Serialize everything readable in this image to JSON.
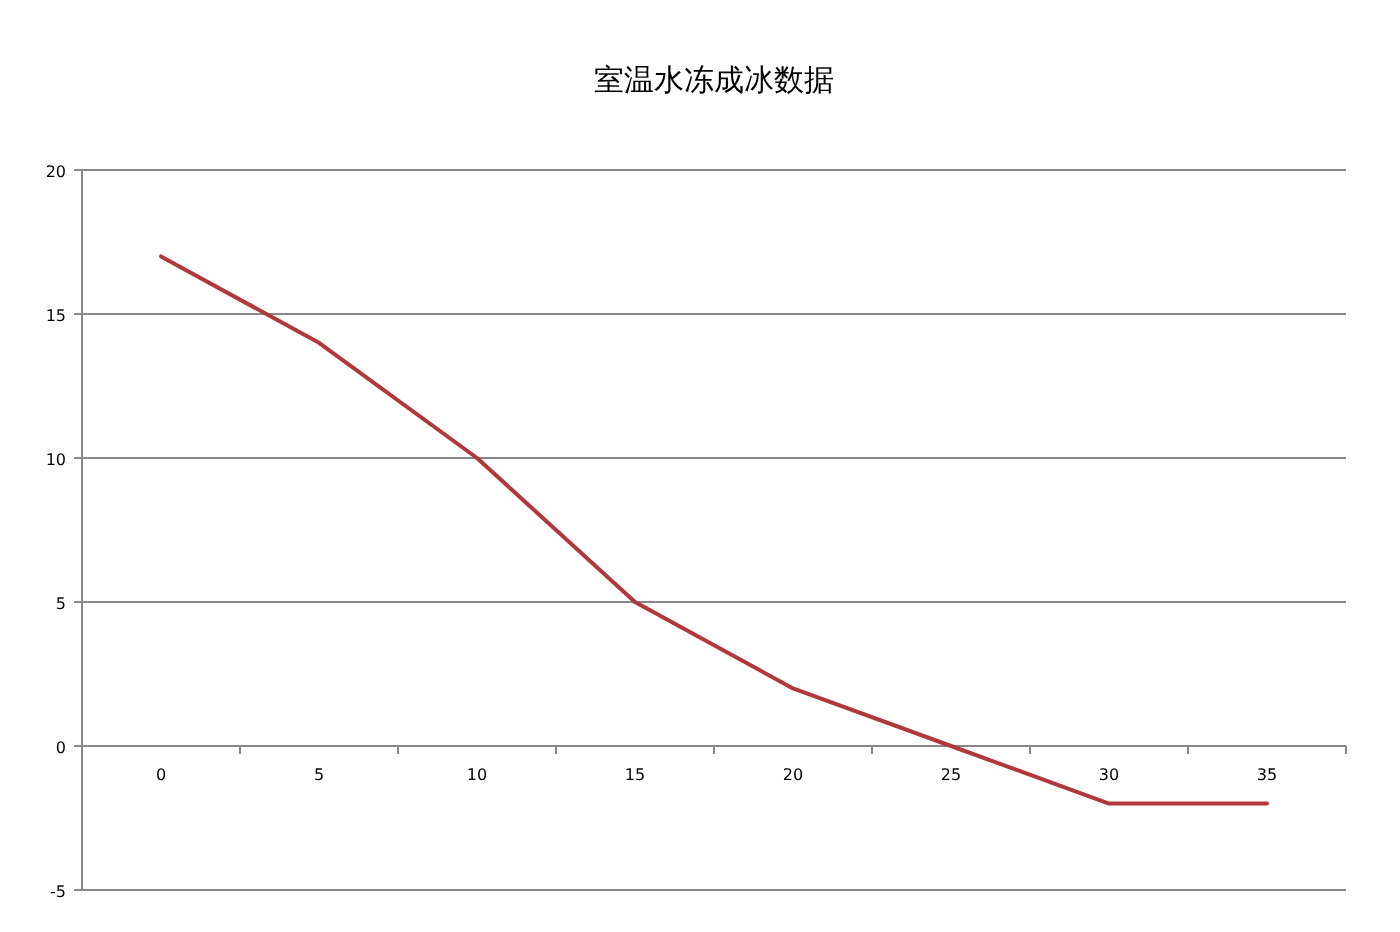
{
  "chart_data": {
    "type": "line",
    "title": "室温水冻成冰数据",
    "categories": [
      "0",
      "5",
      "10",
      "15",
      "20",
      "25",
      "30",
      "35"
    ],
    "series": [
      {
        "color": "#b0383a",
        "values": [
          17,
          14,
          10,
          5,
          2,
          0,
          -2,
          -2
        ]
      }
    ],
    "ylim": [
      -5,
      20
    ],
    "yticks": [
      -5,
      0,
      5,
      10,
      15,
      20
    ],
    "grid": "y"
  }
}
